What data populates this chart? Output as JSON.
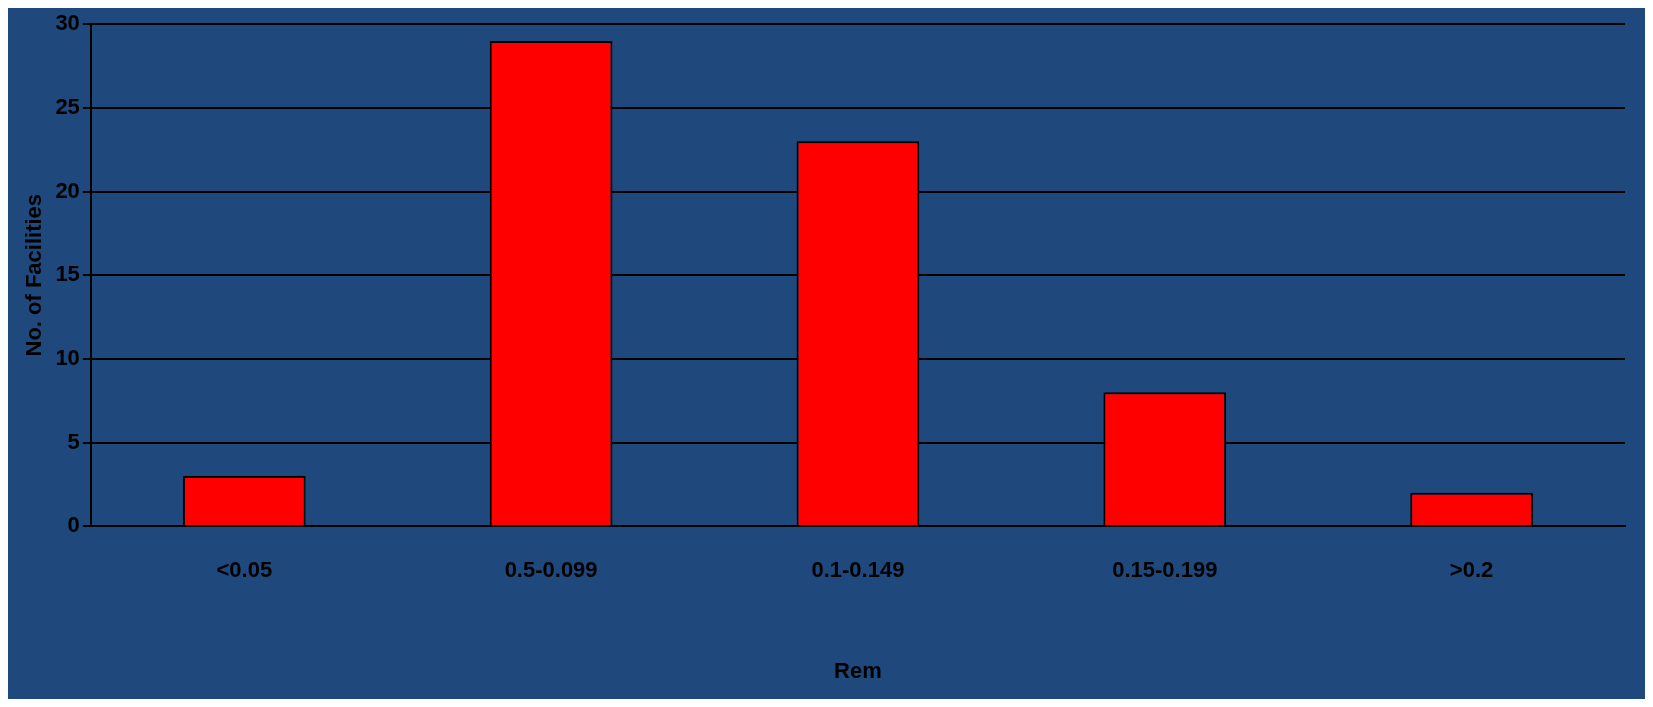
{
  "chart_data": {
    "type": "bar",
    "xlabel": "Rem",
    "ylabel": "No. of Facilities",
    "categories": [
      "<0.05",
      "0.5-0.099",
      "0.1-0.149",
      "0.15-0.199",
      ">0.2"
    ],
    "values": [
      3,
      29,
      23,
      8,
      2
    ],
    "color": "#ff0000",
    "ylim": [
      0,
      30
    ],
    "yticks": [
      0,
      5,
      10,
      15,
      20,
      25,
      30
    ],
    "grid": "y",
    "legend": false
  }
}
